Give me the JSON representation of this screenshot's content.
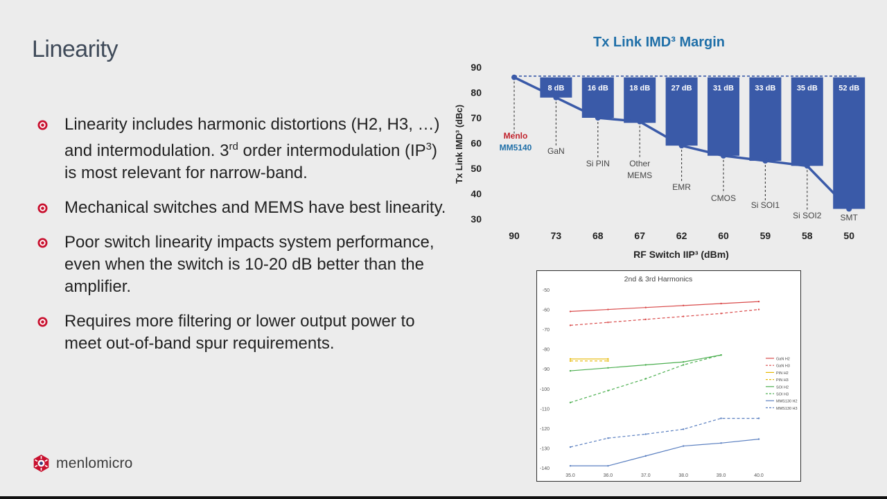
{
  "slide": {
    "title": "Linearity",
    "bullets": [
      {
        "parts": [
          "Linearity includes harmonic distortions (H2, H3, …) and intermodulation. 3",
          "rd",
          " order intermodulation (IP",
          "3",
          ") is most relevant for narrow-band."
        ]
      },
      {
        "parts": [
          "Mechanical switches and MEMS have best linearity."
        ]
      },
      {
        "parts": [
          "Poor switch linearity impacts system performance, even when the switch is 10-20 dB better than the amplifier."
        ]
      },
      {
        "parts": [
          "Requires more filtering or lower output power to meet out-of-band spur requirements."
        ]
      }
    ],
    "logo": {
      "text": "menlomicro",
      "icon": "menlo-logo-icon",
      "color": "#c8102e"
    },
    "bullet_icon": "target-bullet-icon",
    "bullet_color": "#c8102e"
  },
  "chart_data": [
    {
      "type": "bar",
      "title": "Tx Link IMD³ Margin",
      "xlabel": "RF Switch IIP³ (dBm)",
      "ylabel": "Tx Link IMD³ (dBc)",
      "ylim": [
        30,
        90
      ],
      "yticks": [
        30,
        40,
        50,
        60,
        70,
        80,
        90
      ],
      "categories": [
        "90",
        "73",
        "68",
        "67",
        "62",
        "60",
        "59",
        "58",
        "50"
      ],
      "line_values": [
        86,
        78,
        70,
        68.5,
        59,
        55,
        53,
        51,
        34
      ],
      "reference_level": 86.5,
      "point_labels": [
        "Menlo",
        "GaN",
        "Si PIN",
        "Other MEMS",
        "EMR",
        "CMOS",
        "Si SOI1",
        "Si SOI2",
        "SMT"
      ],
      "point_sublabels": [
        "MM5140",
        "",
        "",
        "",
        "",
        "",
        "",
        "",
        ""
      ],
      "margins": [
        null,
        8,
        16,
        18,
        27,
        31,
        33,
        35,
        52
      ],
      "margin_labels": [
        "",
        "8 dB",
        "16 dB",
        "18 dB",
        "27 dB",
        "31 dB",
        "33 dB",
        "35 dB",
        "52 dB"
      ],
      "colors": {
        "bar": "#3a5aa8",
        "line": "#3a5aa8",
        "title": "#1f6fa8",
        "menlo": "#c0202a",
        "mm": "#1f6fa8"
      }
    },
    {
      "type": "line",
      "title": "2nd & 3rd Harmonics",
      "ylim": [
        -140,
        -50
      ],
      "yticks": [
        -50,
        -60,
        -70,
        -80,
        -90,
        -100,
        -110,
        -120,
        -130,
        -140
      ],
      "xticks": [
        "35.0",
        "36.0",
        "37.0",
        "38.0",
        "39.0",
        "40.0"
      ],
      "xlim": [
        35,
        40
      ],
      "legend_position": "right",
      "series": [
        {
          "name": "GaN H2",
          "color": "#d94a4a",
          "dash": false,
          "x": [
            35,
            36,
            37,
            38,
            39,
            40
          ],
          "y": [
            -61,
            -60,
            -59,
            -58,
            -57,
            -56
          ]
        },
        {
          "name": "GaN H3",
          "color": "#d94a4a",
          "dash": true,
          "x": [
            35,
            36,
            37,
            38,
            39,
            40
          ],
          "y": [
            -68,
            -66.5,
            -65,
            -63.5,
            -62,
            -60
          ]
        },
        {
          "name": "PIN H2",
          "color": "#e6b800",
          "dash": false,
          "x": [
            35,
            36
          ],
          "y": [
            -85,
            -85
          ]
        },
        {
          "name": "PIN H3",
          "color": "#e6b800",
          "dash": true,
          "x": [
            35,
            36
          ],
          "y": [
            -86,
            -86
          ]
        },
        {
          "name": "SOI H2",
          "color": "#4caf50",
          "dash": false,
          "x": [
            35,
            36,
            37,
            38,
            39
          ],
          "y": [
            -91,
            -89.5,
            -88,
            -86.5,
            -83
          ]
        },
        {
          "name": "SOI H3",
          "color": "#4caf50",
          "dash": true,
          "x": [
            35,
            36,
            37,
            38,
            39
          ],
          "y": [
            -107,
            -101,
            -95,
            -88,
            -83
          ]
        },
        {
          "name": "MMS130 H2",
          "color": "#5a7fc0",
          "dash": false,
          "x": [
            35,
            36,
            37,
            38,
            39,
            40
          ],
          "y": [
            -139,
            -139,
            -134,
            -129,
            -127.5,
            -125.5
          ]
        },
        {
          "name": "MMS130 H3",
          "color": "#5a7fc0",
          "dash": true,
          "x": [
            35,
            36,
            37,
            38,
            39,
            40
          ],
          "y": [
            -129.5,
            -125,
            -123,
            -120.5,
            -115,
            -115
          ]
        }
      ]
    }
  ]
}
